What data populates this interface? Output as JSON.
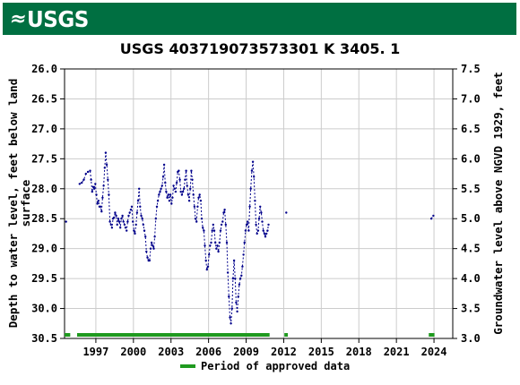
{
  "banner": {
    "logo_text": "USGS",
    "color": "#006f41"
  },
  "chart_data": {
    "type": "scatter",
    "title": "USGS 403719073573301 K  3405. 1",
    "ylabel_left": [
      "Depth to water level, feet below land",
      "surface"
    ],
    "ylabel_right": "Groundwater level above NGVD 1929, feet",
    "xlim": [
      "1995-01-01",
      "2025-12-31"
    ],
    "ylim_left": [
      30.5,
      26.0
    ],
    "ylim_right": [
      3.0,
      7.5
    ],
    "datum_offset": 33.5,
    "x_ticks": [
      "1997",
      "2000",
      "2003",
      "2006",
      "2009",
      "2012",
      "2015",
      "2018",
      "2021",
      "2024"
    ],
    "y_ticks_left": [
      "26.0",
      "26.5",
      "27.0",
      "27.5",
      "28.0",
      "28.5",
      "29.0",
      "29.5",
      "30.0",
      "30.5"
    ],
    "y_ticks_right": [
      "7.5",
      "7.0",
      "6.5",
      "6.0",
      "5.5",
      "5.0",
      "4.5",
      "4.0",
      "3.5",
      "3.0"
    ],
    "grid": true,
    "series_color": "#00008b",
    "series": [
      {
        "points": [
          [
            "1995-02",
            28.55
          ],
          [
            "1996-03",
            27.92
          ],
          [
            "1996-05",
            27.9
          ],
          [
            "1996-07",
            27.85
          ],
          [
            "1996-09",
            27.75
          ],
          [
            "1996-11",
            27.72
          ],
          [
            "1997-01",
            27.7
          ],
          [
            "1997-02",
            27.85
          ],
          [
            "1997-03",
            28.05
          ],
          [
            "1997-04",
            27.97
          ],
          [
            "1997-05",
            28.0
          ],
          [
            "1997-06",
            27.92
          ],
          [
            "1997-07",
            28.1
          ],
          [
            "1997-08",
            28.25
          ],
          [
            "1997-09",
            28.2
          ],
          [
            "1997-10",
            28.3
          ],
          [
            "1997-11",
            28.3
          ],
          [
            "1997-12",
            28.38
          ],
          [
            "1998-01",
            28.15
          ],
          [
            "1998-02",
            27.95
          ],
          [
            "1998-03",
            27.65
          ],
          [
            "1998-04",
            27.4
          ],
          [
            "1998-05",
            27.6
          ],
          [
            "1998-06",
            27.85
          ],
          [
            "1998-07",
            28.1
          ],
          [
            "1998-08",
            28.55
          ],
          [
            "1998-09",
            28.6
          ],
          [
            "1998-10",
            28.65
          ],
          [
            "1998-11",
            28.5
          ],
          [
            "1998-12",
            28.48
          ],
          [
            "1999-01",
            28.4
          ],
          [
            "1999-02",
            28.45
          ],
          [
            "1999-03",
            28.6
          ],
          [
            "1999-04",
            28.5
          ],
          [
            "1999-05",
            28.55
          ],
          [
            "1999-06",
            28.65
          ],
          [
            "1999-07",
            28.5
          ],
          [
            "1999-08",
            28.45
          ],
          [
            "1999-09",
            28.55
          ],
          [
            "1999-10",
            28.6
          ],
          [
            "1999-11",
            28.65
          ],
          [
            "1999-12",
            28.7
          ],
          [
            "2000-01",
            28.55
          ],
          [
            "2000-02",
            28.45
          ],
          [
            "2000-03",
            28.4
          ],
          [
            "2000-04",
            28.35
          ],
          [
            "2000-05",
            28.3
          ],
          [
            "2000-06",
            28.55
          ],
          [
            "2000-07",
            28.7
          ],
          [
            "2000-08",
            28.75
          ],
          [
            "2000-09",
            28.6
          ],
          [
            "2000-10",
            28.4
          ],
          [
            "2000-11",
            28.2
          ],
          [
            "2000-12",
            28.0
          ],
          [
            "2001-01",
            28.3
          ],
          [
            "2001-02",
            28.45
          ],
          [
            "2001-03",
            28.5
          ],
          [
            "2001-04",
            28.6
          ],
          [
            "2001-05",
            28.7
          ],
          [
            "2001-06",
            28.8
          ],
          [
            "2001-07",
            29.05
          ],
          [
            "2001-08",
            29.15
          ],
          [
            "2001-09",
            29.2
          ],
          [
            "2001-10",
            29.2
          ],
          [
            "2001-11",
            29.0
          ],
          [
            "2001-12",
            28.9
          ],
          [
            "2002-01",
            28.95
          ],
          [
            "2002-02",
            29.0
          ],
          [
            "2002-03",
            28.8
          ],
          [
            "2002-04",
            28.5
          ],
          [
            "2002-05",
            28.3
          ],
          [
            "2002-06",
            28.2
          ],
          [
            "2002-07",
            28.1
          ],
          [
            "2002-08",
            28.05
          ],
          [
            "2002-09",
            28.0
          ],
          [
            "2002-10",
            27.95
          ],
          [
            "2002-11",
            27.8
          ],
          [
            "2002-12",
            27.6
          ],
          [
            "2003-01",
            27.9
          ],
          [
            "2003-02",
            28.05
          ],
          [
            "2003-03",
            28.15
          ],
          [
            "2003-04",
            28.1
          ],
          [
            "2003-05",
            28.2
          ],
          [
            "2003-06",
            28.1
          ],
          [
            "2003-07",
            28.25
          ],
          [
            "2003-08",
            28.15
          ],
          [
            "2003-09",
            27.95
          ],
          [
            "2003-10",
            28.0
          ],
          [
            "2003-11",
            28.05
          ],
          [
            "2003-12",
            27.9
          ],
          [
            "2004-01",
            27.72
          ],
          [
            "2004-02",
            27.7
          ],
          [
            "2004-03",
            27.85
          ],
          [
            "2004-04",
            28.05
          ],
          [
            "2004-05",
            28.1
          ],
          [
            "2004-06",
            28.05
          ],
          [
            "2004-07",
            28.0
          ],
          [
            "2004-08",
            27.85
          ],
          [
            "2004-09",
            27.7
          ],
          [
            "2004-10",
            27.95
          ],
          [
            "2004-11",
            28.1
          ],
          [
            "2004-12",
            28.2
          ],
          [
            "2005-01",
            28.0
          ],
          [
            "2005-02",
            27.7
          ],
          [
            "2005-03",
            27.85
          ],
          [
            "2005-04",
            28.1
          ],
          [
            "2005-05",
            28.3
          ],
          [
            "2005-06",
            28.5
          ],
          [
            "2005-07",
            28.55
          ],
          [
            "2005-08",
            28.3
          ],
          [
            "2005-09",
            28.15
          ],
          [
            "2005-10",
            28.1
          ],
          [
            "2005-11",
            28.2
          ],
          [
            "2005-12",
            28.5
          ],
          [
            "2006-01",
            28.65
          ],
          [
            "2006-02",
            28.7
          ],
          [
            "2006-03",
            28.95
          ],
          [
            "2006-04",
            29.2
          ],
          [
            "2006-05",
            29.35
          ],
          [
            "2006-06",
            29.3
          ],
          [
            "2006-07",
            29.1
          ],
          [
            "2006-08",
            28.95
          ],
          [
            "2006-09",
            28.9
          ],
          [
            "2006-10",
            28.7
          ],
          [
            "2006-11",
            28.6
          ],
          [
            "2006-12",
            28.7
          ],
          [
            "2007-01",
            28.9
          ],
          [
            "2007-02",
            29.0
          ],
          [
            "2007-03",
            28.95
          ],
          [
            "2007-04",
            29.05
          ],
          [
            "2007-05",
            28.9
          ],
          [
            "2007-06",
            28.7
          ],
          [
            "2007-07",
            28.6
          ],
          [
            "2007-08",
            28.55
          ],
          [
            "2007-09",
            28.4
          ],
          [
            "2007-10",
            28.35
          ],
          [
            "2007-11",
            28.6
          ],
          [
            "2007-12",
            28.9
          ],
          [
            "2008-01",
            29.4
          ],
          [
            "2008-02",
            29.8
          ],
          [
            "2008-03",
            30.15
          ],
          [
            "2008-04",
            30.25
          ],
          [
            "2008-05",
            30.0
          ],
          [
            "2008-06",
            29.5
          ],
          [
            "2008-07",
            29.2
          ],
          [
            "2008-08",
            29.5
          ],
          [
            "2008-09",
            29.9
          ],
          [
            "2008-10",
            30.05
          ],
          [
            "2008-11",
            29.8
          ],
          [
            "2008-12",
            29.6
          ],
          [
            "2009-01",
            29.5
          ],
          [
            "2009-02",
            29.45
          ],
          [
            "2009-03",
            29.3
          ],
          [
            "2009-04",
            29.1
          ],
          [
            "2009-05",
            28.9
          ],
          [
            "2009-06",
            28.7
          ],
          [
            "2009-07",
            28.6
          ],
          [
            "2009-08",
            28.55
          ],
          [
            "2009-09",
            28.7
          ],
          [
            "2009-10",
            28.3
          ],
          [
            "2009-11",
            28.0
          ],
          [
            "2009-12",
            27.7
          ],
          [
            "2010-01",
            27.55
          ],
          [
            "2010-02",
            27.8
          ],
          [
            "2010-03",
            28.2
          ],
          [
            "2010-04",
            28.6
          ],
          [
            "2010-05",
            28.75
          ],
          [
            "2010-06",
            28.7
          ],
          [
            "2010-07",
            28.5
          ],
          [
            "2010-08",
            28.3
          ],
          [
            "2010-09",
            28.4
          ],
          [
            "2010-10",
            28.55
          ],
          [
            "2010-11",
            28.7
          ],
          [
            "2010-12",
            28.75
          ],
          [
            "2011-01",
            28.8
          ],
          [
            "2011-02",
            28.75
          ],
          [
            "2011-03",
            28.7
          ],
          [
            "2011-04",
            28.6
          ],
          [
            "2012-09",
            28.4
          ],
          [
            "2024-04",
            28.5
          ],
          [
            "2024-06",
            28.45
          ]
        ]
      }
    ],
    "approved_periods": [
      [
        "1995-01-01",
        "1995-06-15"
      ],
      [
        "1996-01-01",
        "2011-05-15"
      ],
      [
        "2012-07-20",
        "2012-10-30"
      ],
      [
        "2024-02-01",
        "2024-07-15"
      ]
    ],
    "approved_color": "#1f9a1f",
    "legend": {
      "position": "bottom-center",
      "label": "Period of approved data"
    }
  }
}
